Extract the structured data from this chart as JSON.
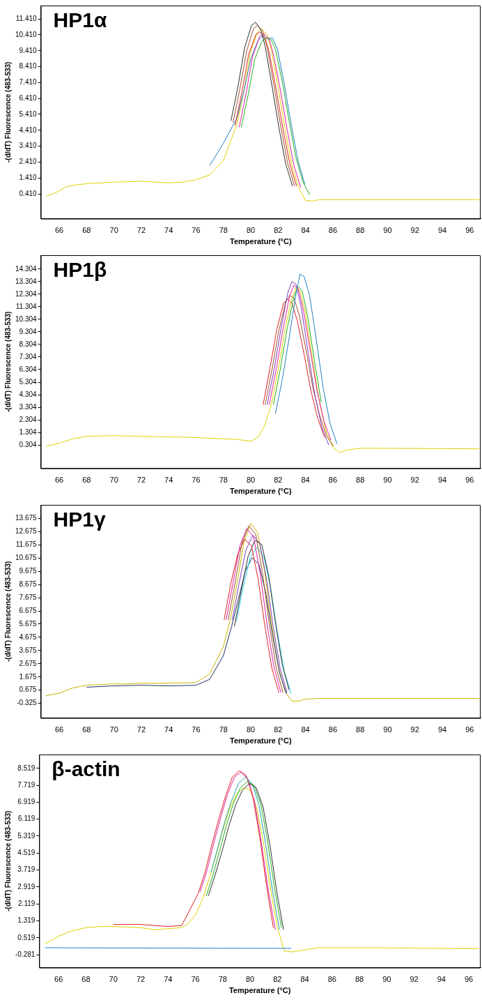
{
  "chart_data": [
    {
      "type": "line",
      "title": "HP1α",
      "xlabel": "Temperature (°C)",
      "ylabel": "-(d/dT) Fluorescence (483-533)",
      "grid": false,
      "legend": false,
      "marker": "none",
      "line_style": "solid",
      "xlim": [
        64.65,
        96.8
      ],
      "xticks": [
        66,
        68,
        70,
        72,
        74,
        76,
        78,
        80,
        82,
        84,
        86,
        88,
        90,
        92,
        94,
        96
      ],
      "ylim": [
        -1.15,
        12.25
      ],
      "yticks": [
        {
          "value": 0.41,
          "label": "0.410"
        },
        {
          "value": 1.41,
          "label": "1.410"
        },
        {
          "value": 2.41,
          "label": "2.410"
        },
        {
          "value": 3.41,
          "label": "3.410"
        },
        {
          "value": 4.41,
          "label": "4.410"
        },
        {
          "value": 5.41,
          "label": "5.410"
        },
        {
          "value": 6.41,
          "label": "6.410"
        },
        {
          "value": 7.41,
          "label": "7.410"
        },
        {
          "value": 8.41,
          "label": "8.410"
        },
        {
          "value": 9.41,
          "label": "9.410"
        },
        {
          "value": 10.41,
          "label": "10.410"
        },
        {
          "value": 11.41,
          "label": "11.410"
        }
      ],
      "x": [
        65,
        65.5,
        66,
        66.5,
        67,
        68,
        70,
        72,
        74,
        75,
        76,
        77,
        78,
        79,
        79.5,
        80,
        80.5,
        80.8,
        81.2,
        81.5,
        82,
        82.5,
        83,
        83.5,
        84,
        84.5,
        85,
        86,
        96.7
      ],
      "series": [
        {
          "color": "#303030",
          "x": [
            78.55,
            79.05,
            79.55,
            80.05,
            80.35,
            80.75,
            81.05,
            81.55,
            82.05,
            82.55,
            83.05
          ],
          "values": [
            5.0,
            7.1,
            9.6,
            11.0,
            11.2,
            10.7,
            9.7,
            7.2,
            4.6,
            2.3,
            0.9
          ]
        },
        {
          "color": "#a0522d",
          "x": [
            78.7,
            79.2,
            79.7,
            80.2,
            80.5,
            80.9,
            81.2,
            81.7,
            82.2,
            82.7,
            83.2
          ],
          "values": [
            4.9,
            7.0,
            9.4,
            10.8,
            11.0,
            10.6,
            9.6,
            7.2,
            4.6,
            2.3,
            0.9
          ]
        },
        {
          "color": "#e02020",
          "x": [
            78.85,
            79.35,
            79.85,
            80.35,
            80.65,
            81.05,
            81.35,
            81.85,
            82.35,
            82.85,
            83.35
          ],
          "values": [
            4.7,
            6.8,
            9.2,
            10.4,
            10.6,
            10.2,
            9.3,
            7.0,
            4.5,
            2.3,
            0.9
          ]
        },
        {
          "color": "#e020a0",
          "x": [
            79.15,
            79.65,
            80.15,
            80.65,
            80.95,
            81.35,
            81.65,
            82.15,
            82.65,
            83.15,
            83.65
          ],
          "values": [
            4.6,
            6.7,
            9.1,
            10.3,
            10.5,
            10.1,
            9.2,
            7.0,
            4.5,
            2.2,
            0.8
          ]
        },
        {
          "color": "#20b020",
          "x": [
            79.3,
            79.8,
            80.3,
            80.8,
            81.1,
            81.5,
            81.8,
            82.3,
            82.8,
            83.3,
            83.8,
            84.3
          ],
          "values": [
            4.6,
            6.6,
            8.9,
            10.0,
            10.2,
            10.1,
            9.5,
            7.5,
            5.0,
            2.7,
            1.2,
            0.35
          ]
        },
        {
          "color": "#2080c0",
          "x": [
            77,
            78,
            79,
            79.5,
            80,
            80.5,
            80.8,
            81.2,
            81.6,
            81.95,
            82.45,
            82.95,
            83.45,
            83.95
          ],
          "values": [
            2.2,
            3.6,
            5.2,
            6.9,
            8.9,
            10.0,
            10.3,
            10.2,
            10.2,
            9.5,
            7.3,
            4.8,
            2.5,
            1.0
          ]
        },
        {
          "color": "#e0d000",
          "values": [
            0.25,
            0.4,
            0.6,
            0.85,
            0.95,
            1.05,
            1.15,
            1.2,
            1.1,
            1.15,
            1.3,
            1.6,
            2.5,
            4.8,
            6.9,
            9.4,
            10.6,
            10.8,
            10.4,
            9.5,
            7.1,
            4.5,
            2.2,
            0.8,
            0.0,
            -0.05,
            0.05,
            0.05,
            0.05
          ]
        }
      ]
    },
    {
      "type": "line",
      "title": "HP1β",
      "xlabel": "Temperature (°C)",
      "ylabel": "-(d/dT) Fluorescence (483-533)",
      "grid": false,
      "legend": false,
      "marker": "none",
      "line_style": "solid",
      "xlim": [
        64.65,
        96.8
      ],
      "xticks": [
        66,
        68,
        70,
        72,
        74,
        76,
        78,
        80,
        82,
        84,
        86,
        88,
        90,
        92,
        94,
        96
      ],
      "ylim": [
        -1.55,
        15.4
      ],
      "yticks": [
        {
          "value": 0.304,
          "label": "0.304"
        },
        {
          "value": 1.304,
          "label": "1.304"
        },
        {
          "value": 2.304,
          "label": "2.304"
        },
        {
          "value": 3.304,
          "label": "3.304"
        },
        {
          "value": 4.304,
          "label": "4.304"
        },
        {
          "value": 5.304,
          "label": "5.304"
        },
        {
          "value": 6.304,
          "label": "6.304"
        },
        {
          "value": 7.304,
          "label": "7.304"
        },
        {
          "value": 8.304,
          "label": "8.304"
        },
        {
          "value": 9.304,
          "label": "9.304"
        },
        {
          "value": 10.304,
          "label": "10.304"
        },
        {
          "value": 11.304,
          "label": "11.304"
        },
        {
          "value": 12.304,
          "label": "12.304"
        },
        {
          "value": 13.304,
          "label": "13.304"
        },
        {
          "value": 14.304,
          "label": "14.304"
        }
      ],
      "x": [
        65,
        66,
        67,
        68,
        70,
        72,
        74,
        76,
        78,
        79,
        80,
        80.5,
        81,
        81.5,
        82,
        82.5,
        83,
        83.3,
        83.6,
        84,
        84.5,
        85,
        85.5,
        86,
        86.5,
        87,
        88,
        89,
        96.7
      ],
      "series": [
        {
          "color": "#2080c0",
          "x": [
            81.8,
            82.3,
            82.8,
            83.3,
            83.6,
            83.9,
            84.3,
            84.8,
            85.3,
            85.8,
            86.3
          ],
          "values": [
            2.8,
            5.5,
            8.8,
            12.3,
            13.9,
            13.7,
            12.2,
            8.6,
            4.8,
            2.0,
            0.4
          ]
        },
        {
          "color": "#8040c0",
          "x": [
            81.2,
            81.7,
            82.2,
            82.7,
            83.0,
            83.3,
            83.7,
            84.2,
            84.7,
            85.2,
            85.7
          ],
          "values": [
            3.5,
            6.3,
            9.5,
            12.4,
            13.3,
            13.1,
            11.2,
            7.6,
            4.2,
            1.7,
            0.3
          ]
        },
        {
          "color": "#e020a0",
          "x": [
            81.35,
            81.85,
            82.35,
            82.85,
            83.15,
            83.45,
            83.85,
            84.35,
            84.85,
            85.35,
            85.85
          ],
          "values": [
            3.5,
            6.3,
            9.5,
            12.2,
            13.0,
            12.8,
            11.0,
            7.8,
            4.6,
            2.2,
            0.7
          ]
        },
        {
          "color": "#20b020",
          "x": [
            81.65,
            82.15,
            82.65,
            83.15,
            83.45,
            83.75,
            84.15,
            84.65,
            85.15
          ],
          "values": [
            3.5,
            6.3,
            9.5,
            12.1,
            12.9,
            12.6,
            10.6,
            7.0,
            3.7
          ]
        },
        {
          "color": "#a0522d",
          "x": [
            81.05,
            81.55,
            82.05,
            82.55,
            82.85,
            83.15,
            83.55,
            84.05,
            84.55,
            85.05,
            85.55,
            86.05
          ],
          "values": [
            3.5,
            6.3,
            9.4,
            11.7,
            12.2,
            12.0,
            10.6,
            7.8,
            4.8,
            2.6,
            1.0,
            0.2
          ]
        },
        {
          "color": "#e02020",
          "x": [
            80.9,
            81.4,
            81.9,
            82.4,
            82.7,
            83.0,
            83.4,
            83.9,
            84.4,
            84.9,
            85.4
          ],
          "values": [
            3.5,
            6.4,
            9.5,
            11.6,
            11.9,
            11.6,
            10.2,
            7.5,
            4.6,
            2.4,
            0.9
          ]
        },
        {
          "color": "#e0d000",
          "values": [
            0.2,
            0.45,
            0.8,
            1.0,
            1.05,
            1.0,
            0.95,
            0.9,
            0.8,
            0.75,
            0.6,
            0.9,
            1.8,
            3.5,
            6.3,
            9.5,
            12.0,
            12.8,
            12.6,
            10.8,
            7.2,
            3.8,
            1.4,
            0.1,
            -0.3,
            -0.1,
            0.05,
            0.05,
            0.0
          ]
        }
      ]
    },
    {
      "type": "line",
      "title": "HP1γ",
      "xlabel": "Temperature (°C)",
      "ylabel": "-(d/dT) Fluorescence (483-533)",
      "grid": false,
      "legend": false,
      "marker": "none",
      "line_style": "solid",
      "xlim": [
        64.65,
        96.8
      ],
      "xticks": [
        66,
        68,
        70,
        72,
        74,
        76,
        78,
        80,
        82,
        84,
        86,
        88,
        90,
        92,
        94,
        96
      ],
      "ylim": [
        -1.43,
        14.7
      ],
      "yticks": [
        {
          "value": -0.325,
          "label": "-0.325"
        },
        {
          "value": 0.675,
          "label": "0.675"
        },
        {
          "value": 1.675,
          "label": "1.675"
        },
        {
          "value": 2.675,
          "label": "2.675"
        },
        {
          "value": 3.675,
          "label": "3.675"
        },
        {
          "value": 4.675,
          "label": "4.675"
        },
        {
          "value": 5.675,
          "label": "5.675"
        },
        {
          "value": 6.675,
          "label": "6.675"
        },
        {
          "value": 7.675,
          "label": "7.675"
        },
        {
          "value": 8.675,
          "label": "8.675"
        },
        {
          "value": 9.675,
          "label": "9.675"
        },
        {
          "value": 10.675,
          "label": "10.675"
        },
        {
          "value": 11.675,
          "label": "11.675"
        },
        {
          "value": 12.675,
          "label": "12.675"
        },
        {
          "value": 13.675,
          "label": "13.675"
        }
      ],
      "x": [
        65,
        66,
        67,
        68,
        70,
        70.5,
        71,
        72,
        74,
        76,
        77,
        78,
        78.5,
        79,
        79.5,
        80,
        80.5,
        81,
        81.5,
        82,
        82.5,
        83,
        83.5,
        84,
        85,
        96.7
      ],
      "series": [
        {
          "color": "#a0522d",
          "x": [
            78.35,
            78.85,
            79.35,
            79.85,
            80.35,
            80.85,
            81.35,
            81.85,
            82.35
          ],
          "values": [
            6.0,
            8.8,
            11.8,
            13.1,
            12.5,
            9.6,
            5.7,
            2.4,
            0.5
          ]
        },
        {
          "color": "#e020a0",
          "x": [
            78.2,
            78.7,
            79.2,
            79.7,
            80.2,
            80.7,
            81.2,
            81.7,
            82.2
          ],
          "values": [
            6.0,
            8.8,
            11.6,
            12.9,
            12.3,
            9.4,
            5.6,
            2.4,
            0.5
          ]
        },
        {
          "color": "#8040c0",
          "x": [
            78.65,
            79.15,
            79.65,
            80.15,
            80.65,
            81.15,
            81.65,
            82.15,
            82.65
          ],
          "values": [
            6.0,
            8.8,
            11.3,
            12.4,
            11.8,
            9.1,
            5.4,
            2.3,
            0.5
          ]
        },
        {
          "color": "#e02020",
          "x": [
            78.05,
            78.55,
            79.05,
            79.55,
            80.05,
            80.55,
            81.05,
            81.55,
            82.05
          ],
          "values": [
            6.0,
            8.8,
            11.0,
            12.1,
            11.6,
            9.0,
            5.4,
            2.3,
            0.5
          ]
        },
        {
          "color": "#303030",
          "x": [
            78.8,
            79.3,
            79.8,
            80.3,
            80.8,
            81.3,
            81.8,
            82.3,
            82.8
          ],
          "values": [
            5.5,
            8.2,
            10.8,
            12.0,
            11.7,
            9.4,
            5.8,
            2.6,
            0.7
          ]
        },
        {
          "color": "#20d0e0",
          "x": [
            78.95,
            79.45,
            79.95,
            80.45,
            80.95,
            81.45,
            81.95,
            82.45,
            82.95
          ],
          "values": [
            5.9,
            8.5,
            10.7,
            11.5,
            10.8,
            8.4,
            5.0,
            2.1,
            0.4
          ]
        },
        {
          "color": "#203060",
          "x": [
            68,
            70,
            72,
            74,
            76,
            77,
            78,
            78.6,
            79.1,
            79.6,
            80.1,
            80.6,
            81.1,
            81.6,
            82.1,
            82.6
          ],
          "values": [
            0.9,
            1.0,
            1.05,
            1.0,
            1.05,
            1.5,
            3.3,
            5.5,
            7.6,
            9.7,
            10.7,
            10.2,
            8.0,
            4.8,
            2.0,
            0.4
          ]
        },
        {
          "color": "#c8b400",
          "values": [
            0.25,
            0.45,
            0.85,
            1.05,
            1.15,
            1.15,
            1.15,
            1.2,
            1.2,
            1.25,
            1.9,
            4.0,
            6.0,
            8.8,
            11.9,
            13.3,
            12.6,
            9.7,
            5.8,
            2.5,
            0.6,
            -0.15,
            -0.15,
            0.0,
            0.05,
            0.05
          ]
        }
      ]
    },
    {
      "type": "line",
      "title": "β-actin",
      "xlabel": "Temperature (°C)",
      "ylabel": "-(d/dT) Fluorescence (483-533)",
      "grid": false,
      "legend": false,
      "marker": "none",
      "line_style": "solid",
      "xlim": [
        64.58,
        96.86
      ],
      "xticks": [
        66,
        68,
        70,
        72,
        74,
        76,
        78,
        80,
        82,
        84,
        86,
        88,
        90,
        92,
        94,
        96
      ],
      "ylim": [
        -0.89,
        9.17
      ],
      "yticks": [
        {
          "value": -0.281,
          "label": "-0.281"
        },
        {
          "value": 0.519,
          "label": "0.519"
        },
        {
          "value": 1.319,
          "label": "1.319"
        },
        {
          "value": 2.119,
          "label": "2.119"
        },
        {
          "value": 2.919,
          "label": "2.919"
        },
        {
          "value": 3.719,
          "label": "3.719"
        },
        {
          "value": 4.519,
          "label": "4.519"
        },
        {
          "value": 5.319,
          "label": "5.319"
        },
        {
          "value": 6.119,
          "label": "6.119"
        },
        {
          "value": 6.919,
          "label": "6.919"
        },
        {
          "value": 7.719,
          "label": "7.719"
        },
        {
          "value": 8.519,
          "label": "8.519"
        }
      ],
      "x": [
        65,
        65.5,
        66,
        67,
        68,
        69,
        70,
        72,
        73,
        74,
        75,
        75.5,
        76,
        76.5,
        77,
        77.5,
        78,
        78.5,
        79,
        79.5,
        80,
        80.5,
        81,
        81.5,
        82,
        82.5,
        83,
        84,
        85,
        86,
        89,
        96.7
      ],
      "series": [
        {
          "color": "#2080c0",
          "x": [
            65,
            75,
            83
          ],
          "values": [
            0.05,
            0.03,
            0.02
          ]
        },
        {
          "color": "#303030",
          "x": [
            76.95,
            77.45,
            77.95,
            78.45,
            78.95,
            79.45,
            79.95,
            80.45,
            80.95,
            81.45,
            81.95,
            82.45
          ],
          "values": [
            2.5,
            3.5,
            4.6,
            5.8,
            6.8,
            7.5,
            7.8,
            7.6,
            6.7,
            4.9,
            2.7,
            0.9
          ]
        },
        {
          "color": "#20b020",
          "x": [
            76.8,
            77.3,
            77.8,
            78.3,
            78.8,
            79.3,
            79.8,
            80.3,
            80.8,
            81.3,
            81.8,
            82.3
          ],
          "values": [
            2.5,
            3.5,
            4.7,
            5.9,
            6.9,
            7.6,
            7.9,
            7.7,
            6.8,
            5.0,
            2.8,
            1.0
          ]
        },
        {
          "color": "#20a0a0",
          "x": [
            77.15,
            77.65,
            78.15,
            78.65,
            79.15,
            79.65,
            80.15,
            80.65,
            81.15,
            81.65,
            82.15
          ],
          "values": [
            3.6,
            4.8,
            6.0,
            7.0,
            7.8,
            8.1,
            7.8,
            6.8,
            4.9,
            2.7,
            0.9
          ]
        },
        {
          "color": "#e020a0",
          "x": [
            76.35,
            76.85,
            77.35,
            77.85,
            78.35,
            78.85,
            79.35,
            79.85,
            80.35,
            80.85,
            81.35,
            81.85
          ],
          "values": [
            2.7,
            3.7,
            5.0,
            6.2,
            7.3,
            8.1,
            8.35,
            8.0,
            6.9,
            4.9,
            2.7,
            0.9
          ]
        },
        {
          "color": "#e02020",
          "x": [
            70,
            72,
            73,
            74,
            75,
            76.2,
            76.7,
            77.2,
            77.7,
            78.2,
            78.7,
            79.2,
            79.7,
            80.2,
            80.7,
            81.2,
            81.7
          ],
          "values": [
            1.15,
            1.15,
            1.1,
            1.05,
            1.1,
            2.6,
            3.6,
            4.9,
            6.1,
            7.2,
            8.1,
            8.4,
            8.2,
            7.2,
            5.3,
            3.0,
            1.0
          ]
        },
        {
          "color": "#e0d000",
          "values": [
            0.25,
            0.4,
            0.6,
            0.85,
            1.0,
            1.05,
            1.05,
            1.0,
            0.9,
            0.95,
            1.0,
            1.2,
            1.6,
            2.3,
            3.3,
            4.4,
            5.6,
            6.6,
            7.3,
            7.6,
            7.5,
            6.6,
            4.9,
            2.8,
            1.0,
            -0.1,
            -0.15,
            -0.05,
            0.05,
            0.05,
            0.05,
            0.0
          ]
        }
      ]
    }
  ]
}
